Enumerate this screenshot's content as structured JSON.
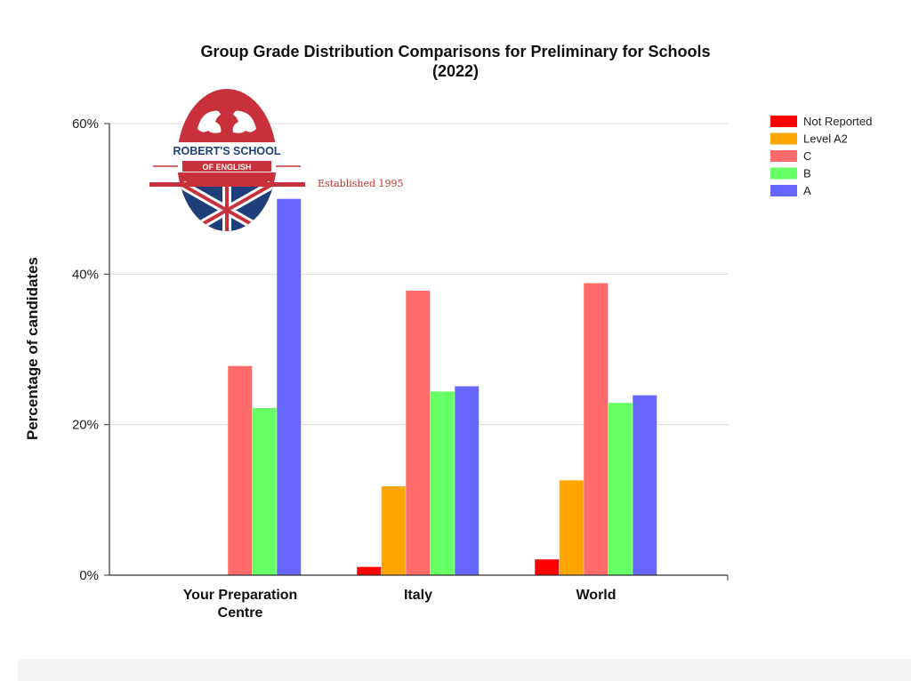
{
  "chart_data": {
    "type": "bar",
    "title": [
      "Group Grade Distribution Comparisons for Preliminary for Schools",
      "(2022)"
    ],
    "ylabel": "Percentage of candidates",
    "xlabel": "",
    "categories": [
      [
        "Your Preparation",
        "Centre"
      ],
      [
        "Italy"
      ],
      [
        "World"
      ]
    ],
    "ylim": [
      0,
      60
    ],
    "yticks": [
      0,
      20,
      40,
      60
    ],
    "ytick_suffix": "%",
    "grid": true,
    "legend_position": "top-right",
    "series": [
      {
        "name": "Not Reported",
        "color": "#ff0000",
        "values": [
          0,
          1.1,
          2.1
        ]
      },
      {
        "name": "Level A2",
        "color": "#ffa500",
        "values": [
          0,
          11.8,
          12.6
        ]
      },
      {
        "name": "C",
        "color": "#ff6b6b",
        "values": [
          27.8,
          37.8,
          38.8
        ]
      },
      {
        "name": "B",
        "color": "#66ff66",
        "values": [
          22.2,
          24.4,
          22.9
        ]
      },
      {
        "name": "A",
        "color": "#6666ff",
        "values": [
          50.0,
          25.1,
          23.9
        ]
      }
    ]
  },
  "logo": {
    "name": "ROBERT'S SCHOOL",
    "subname": "OF ENGLISH",
    "tagline": "Established 1995"
  }
}
